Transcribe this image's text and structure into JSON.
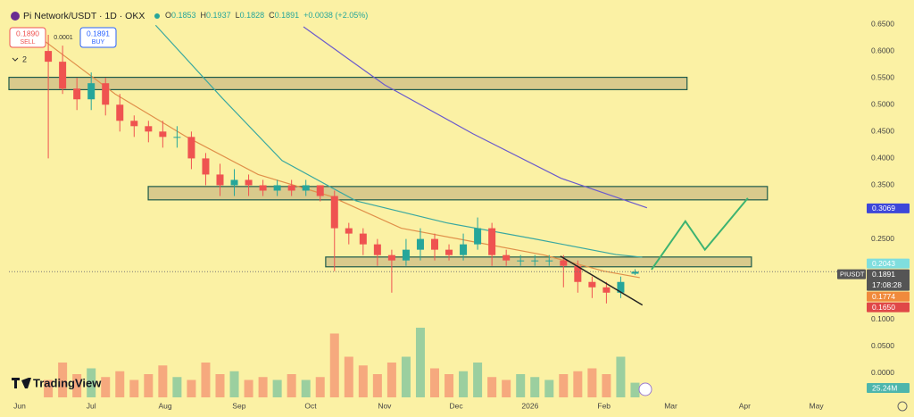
{
  "chart_data": {
    "type": "candlestick",
    "title": "Pi Network/USDT · 1D · OKX",
    "ohlc_legend": [
      {
        "key": "O",
        "value": "0.1853"
      },
      {
        "key": "H",
        "value": "0.1937"
      },
      {
        "key": "L",
        "value": "0.1828"
      },
      {
        "key": "C",
        "value": "0.1891"
      }
    ],
    "change": "+0.0038 (+2.05%)",
    "sell": {
      "price": "0.1890",
      "label": "SELL"
    },
    "spread": "0.0001",
    "buy": {
      "price": "0.1891",
      "label": "BUY"
    },
    "indicators_count": "2",
    "brand": "TradingView",
    "up_color": "#26a69a",
    "down_color": "#ef5350",
    "xlim": [
      -4.5,
      354
    ],
    "ylim": [
      -0.0449,
      0.6783
    ],
    "xticks": [
      {
        "value": 0,
        "label": "Jun"
      },
      {
        "value": 30,
        "label": "Jul"
      },
      {
        "value": 61,
        "label": "Aug"
      },
      {
        "value": 92,
        "label": "Sep"
      },
      {
        "value": 122,
        "label": "Oct"
      },
      {
        "value": 153,
        "label": "Nov"
      },
      {
        "value": 183,
        "label": "Dec"
      },
      {
        "value": 214,
        "label": "2026"
      },
      {
        "value": 245,
        "label": "Feb"
      },
      {
        "value": 273,
        "label": "Mar"
      },
      {
        "value": 304,
        "label": "Apr"
      },
      {
        "value": 334,
        "label": "May"
      }
    ],
    "yticks": [
      {
        "value": 0.65,
        "label": "0.6500"
      },
      {
        "value": 0.6,
        "label": "0.6000"
      },
      {
        "value": 0.55,
        "label": "0.5500"
      },
      {
        "value": 0.5,
        "label": "0.5000"
      },
      {
        "value": 0.45,
        "label": "0.4500"
      },
      {
        "value": 0.4,
        "label": "0.4000"
      },
      {
        "value": 0.35,
        "label": "0.3500"
      },
      {
        "value": 0.25,
        "label": "0.2500"
      },
      {
        "value": 0.1,
        "label": "0.1000"
      },
      {
        "value": 0.05,
        "label": "0.0500"
      },
      {
        "value": 0,
        "label": "0.0000"
      }
    ],
    "x": [
      12,
      18,
      24,
      30,
      36,
      42,
      48,
      54,
      60,
      66,
      72,
      78,
      84,
      90,
      96,
      102,
      108,
      114,
      120,
      126,
      132,
      138,
      144,
      150,
      156,
      162,
      168,
      174,
      180,
      186,
      192,
      198,
      204,
      210,
      216,
      222,
      228,
      234,
      240,
      246,
      252,
      258
    ],
    "open": [
      0.6,
      0.58,
      0.53,
      0.51,
      0.54,
      0.5,
      0.47,
      0.46,
      0.45,
      0.44,
      0.44,
      0.4,
      0.37,
      0.35,
      0.36,
      0.35,
      0.34,
      0.35,
      0.34,
      0.35,
      0.33,
      0.27,
      0.26,
      0.24,
      0.22,
      0.21,
      0.23,
      0.25,
      0.23,
      0.22,
      0.24,
      0.27,
      0.22,
      0.21,
      0.21,
      0.21,
      0.21,
      0.2,
      0.17,
      0.16,
      0.15,
      0.1853
    ],
    "high": [
      0.63,
      0.61,
      0.55,
      0.56,
      0.55,
      0.52,
      0.48,
      0.47,
      0.47,
      0.46,
      0.45,
      0.41,
      0.39,
      0.38,
      0.37,
      0.36,
      0.36,
      0.36,
      0.36,
      0.35,
      0.34,
      0.28,
      0.27,
      0.25,
      0.23,
      0.25,
      0.27,
      0.26,
      0.24,
      0.26,
      0.29,
      0.28,
      0.23,
      0.22,
      0.22,
      0.22,
      0.22,
      0.21,
      0.18,
      0.17,
      0.18,
      0.1937
    ],
    "low": [
      0.4,
      0.52,
      0.49,
      0.49,
      0.48,
      0.45,
      0.44,
      0.43,
      0.42,
      0.42,
      0.38,
      0.35,
      0.33,
      0.33,
      0.33,
      0.33,
      0.33,
      0.33,
      0.33,
      0.32,
      0.19,
      0.24,
      0.22,
      0.2,
      0.15,
      0.2,
      0.21,
      0.21,
      0.21,
      0.21,
      0.23,
      0.2,
      0.2,
      0.2,
      0.2,
      0.2,
      0.16,
      0.15,
      0.14,
      0.13,
      0.14,
      0.1828
    ],
    "close": [
      0.58,
      0.53,
      0.51,
      0.54,
      0.5,
      0.47,
      0.46,
      0.45,
      0.44,
      0.44,
      0.4,
      0.37,
      0.35,
      0.36,
      0.35,
      0.34,
      0.35,
      0.34,
      0.35,
      0.33,
      0.27,
      0.26,
      0.24,
      0.22,
      0.21,
      0.23,
      0.25,
      0.23,
      0.22,
      0.24,
      0.27,
      0.22,
      0.21,
      0.21,
      0.21,
      0.21,
      0.2,
      0.17,
      0.16,
      0.15,
      0.17,
      0.1891
    ],
    "volume": [
      30,
      60,
      40,
      50,
      35,
      45,
      30,
      40,
      55,
      35,
      30,
      60,
      40,
      45,
      30,
      35,
      30,
      40,
      30,
      35,
      110,
      70,
      55,
      40,
      60,
      70,
      120,
      50,
      40,
      45,
      60,
      35,
      30,
      40,
      35,
      30,
      40,
      45,
      50,
      40,
      70,
      25.24
    ],
    "vlim": [
      0,
      200
    ],
    "volume_label": "25.24M",
    "moving_averages": [
      {
        "color": "#3aa8a0",
        "x": [
          57,
          85,
          110,
          141,
          179,
          216,
          250,
          261
        ],
        "values": [
          0.648,
          0.512,
          0.396,
          0.321,
          0.28,
          0.25,
          0.221,
          0.216
        ]
      },
      {
        "color": "#e0904a",
        "x": [
          10,
          40,
          70,
          100,
          130,
          160,
          190,
          220,
          245,
          260
        ],
        "values": [
          0.62,
          0.52,
          0.44,
          0.37,
          0.33,
          0.27,
          0.245,
          0.22,
          0.19,
          0.178
        ]
      },
      {
        "color": "#6a5acd",
        "x": [
          119,
          153,
          190,
          227,
          263
        ],
        "values": [
          0.645,
          0.537,
          0.446,
          0.363,
          0.308
        ]
      }
    ],
    "zones": [
      {
        "day_range": [
          -4.5,
          279.8
        ],
        "price_range": [
          0.528,
          0.551
        ]
      },
      {
        "day_range": [
          53.9,
          313.5
        ],
        "price_range": [
          0.3228,
          0.3477
        ]
      },
      {
        "day_range": [
          128.3,
          306.8
        ],
        "price_range": [
          0.1982,
          0.2164
        ]
      }
    ],
    "trendline": {
      "color": "#222222",
      "x": [
        226.7,
        261.1
      ],
      "values": [
        0.218,
        0.127
      ]
    },
    "projection": {
      "color": "#3cb371",
      "x": [
        264.9,
        279.1,
        287.3,
        305.3
      ],
      "values": [
        0.193,
        0.283,
        0.23,
        0.326
      ]
    },
    "price_tags": [
      {
        "value": 0.3069,
        "label": "0.3069",
        "color": "#3d47d9"
      },
      {
        "value": 0.2043,
        "label": "0.2043",
        "color": "#7fdede"
      },
      {
        "value": 0.1891,
        "label": "0.1891",
        "color": "#555555"
      },
      {
        "value": 0.1774,
        "label": "0.1774",
        "color": "#f08a3c"
      },
      {
        "value": 0.165,
        "label": "0.1650",
        "color": "#e04848"
      }
    ],
    "last_price": 0.1891,
    "symbol_tag": "PIUSDT",
    "countdown": "17:08:28"
  }
}
